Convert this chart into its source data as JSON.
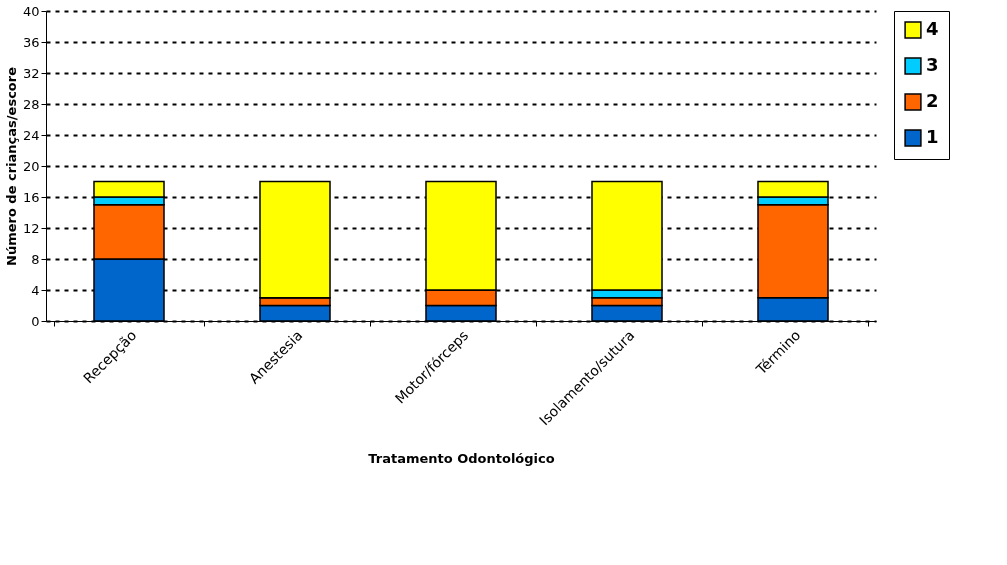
{
  "chart_data": {
    "type": "bar",
    "stacked": true,
    "xlabel": "Tratamento Odontológico",
    "ylabel": "Número de crianças/escore",
    "categories": [
      "Recepção",
      "Anestesia",
      "Motor/fórceps",
      "Isolamento/sutura",
      "Término"
    ],
    "series": [
      {
        "name": "1",
        "color": "#0066cc",
        "values": [
          8,
          2,
          2,
          2,
          3
        ]
      },
      {
        "name": "2",
        "color": "#ff6600",
        "values": [
          7,
          1,
          2,
          1,
          12
        ]
      },
      {
        "name": "3",
        "color": "#00ccff",
        "values": [
          1,
          0,
          0,
          1,
          1
        ]
      },
      {
        "name": "4",
        "color": "#ffff00",
        "values": [
          2,
          15,
          14,
          14,
          2
        ]
      }
    ],
    "ylim": [
      0,
      40
    ],
    "yticks": [
      0,
      4,
      8,
      12,
      16,
      20,
      24,
      28,
      32,
      36,
      40
    ],
    "grid": "y",
    "legend": "right"
  }
}
